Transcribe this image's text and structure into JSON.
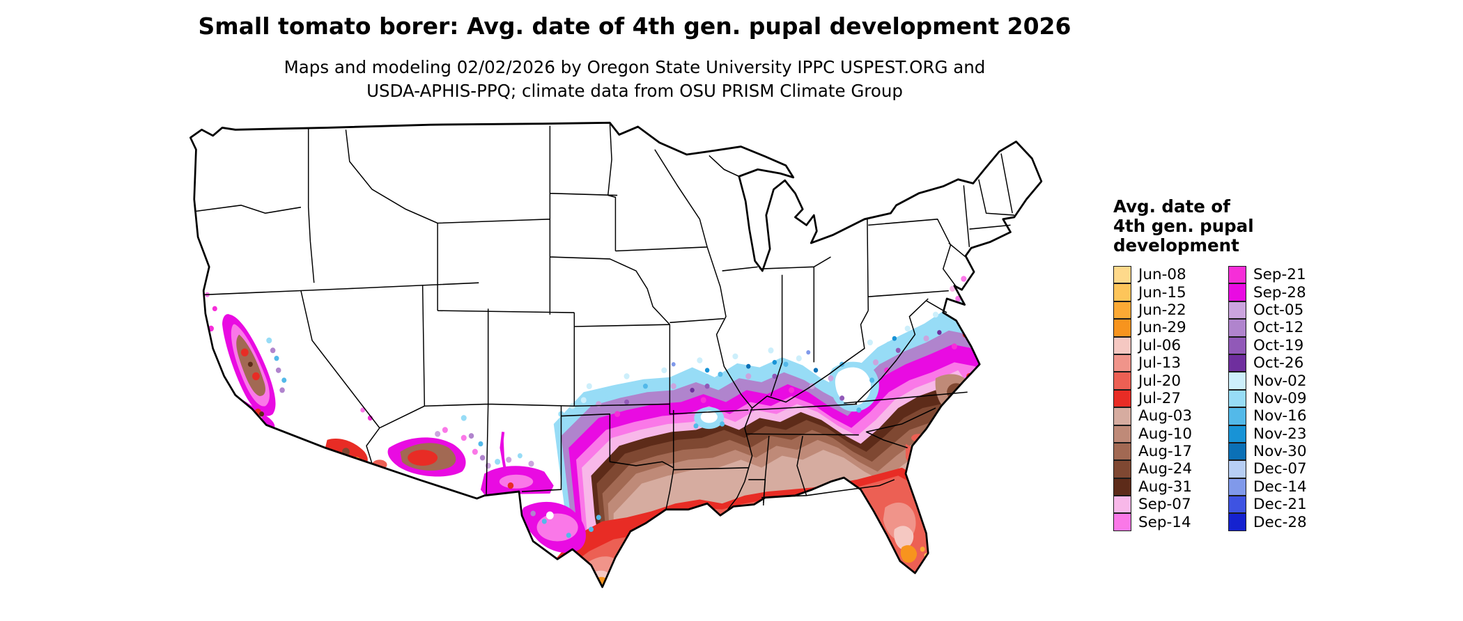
{
  "header": {
    "title": "Small tomato borer: Avg. date of 4th gen. pupal development 2026",
    "subtitle_line1": "Maps and modeling 02/02/2026 by Oregon State University IPPC USPEST.ORG and",
    "subtitle_line2": "USDA-APHIS-PPQ; climate data from OSU PRISM Climate Group"
  },
  "legend": {
    "title_lines": [
      "Avg. date of",
      "4th gen. pupal",
      "development"
    ],
    "left": [
      {
        "label": "Jun-08",
        "color": "#fed98b"
      },
      {
        "label": "Jun-15",
        "color": "#fdc55a"
      },
      {
        "label": "Jun-22",
        "color": "#fba935"
      },
      {
        "label": "Jun-29",
        "color": "#f7941e"
      },
      {
        "label": "Jul-06",
        "color": "#f5c8c2"
      },
      {
        "label": "Jul-13",
        "color": "#f0948a"
      },
      {
        "label": "Jul-20",
        "color": "#ec6054"
      },
      {
        "label": "Jul-27",
        "color": "#e82c25"
      },
      {
        "label": "Aug-03",
        "color": "#d6aca0"
      },
      {
        "label": "Aug-10",
        "color": "#bf8a78"
      },
      {
        "label": "Aug-17",
        "color": "#a26953"
      },
      {
        "label": "Aug-24",
        "color": "#7f4832"
      },
      {
        "label": "Aug-31",
        "color": "#5d2b19"
      },
      {
        "label": "Sep-07",
        "color": "#f8b8e9"
      },
      {
        "label": "Sep-14",
        "color": "#fa78e8"
      }
    ],
    "right": [
      {
        "label": "Sep-21",
        "color": "#f62ed8"
      },
      {
        "label": "Sep-28",
        "color": "#e90be2"
      },
      {
        "label": "Oct-05",
        "color": "#cba4de"
      },
      {
        "label": "Oct-12",
        "color": "#b084cd"
      },
      {
        "label": "Oct-19",
        "color": "#9159b8"
      },
      {
        "label": "Oct-26",
        "color": "#6f2f9e"
      },
      {
        "label": "Nov-02",
        "color": "#cdeffb"
      },
      {
        "label": "Nov-09",
        "color": "#97dcf6"
      },
      {
        "label": "Nov-16",
        "color": "#53b9e9"
      },
      {
        "label": "Nov-23",
        "color": "#1893d6"
      },
      {
        "label": "Nov-30",
        "color": "#0b70b6"
      },
      {
        "label": "Dec-07",
        "color": "#b7cef4"
      },
      {
        "label": "Dec-14",
        "color": "#8099ea"
      },
      {
        "label": "Dec-21",
        "color": "#3e53e2"
      },
      {
        "label": "Dec-28",
        "color": "#1522cf"
      }
    ]
  },
  "map": {
    "region_label": "Continental United States choropleth of avg. 4th generation pupal development dates",
    "outline_color": "#000000",
    "background_color": "#ffffff"
  }
}
